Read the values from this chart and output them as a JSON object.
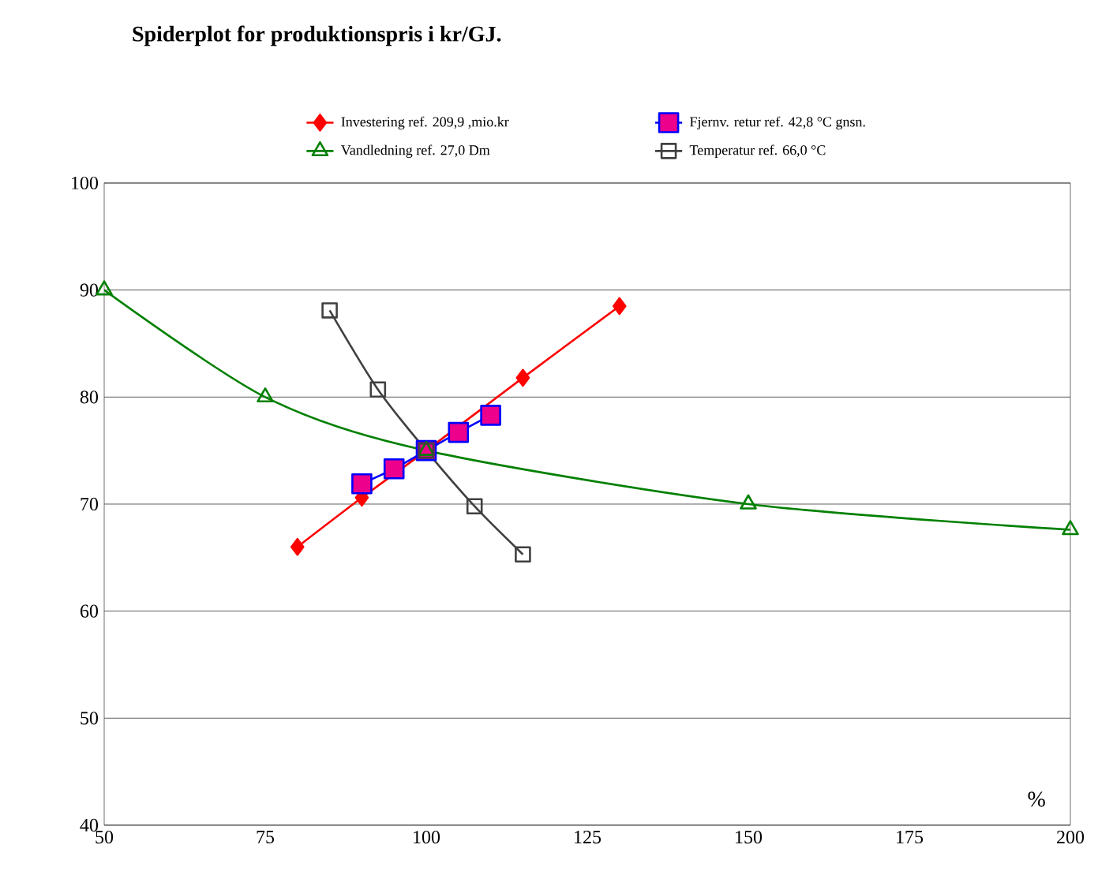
{
  "chart_data": {
    "type": "line",
    "title": "Spiderplot for produktionspris i kr/GJ.",
    "xlabel": "%",
    "xlim": [
      50,
      200
    ],
    "xticks": [
      50,
      75,
      100,
      125,
      150,
      175,
      200
    ],
    "ylim": [
      40,
      100
    ],
    "yticks": [
      40,
      50,
      60,
      70,
      80,
      90,
      100
    ],
    "grid": "y",
    "legend": "top",
    "series": [
      {
        "name": "Investering ref. 209,9 ,mio.kr",
        "color": "#ff0000",
        "marker": "diamond",
        "x": [
          80,
          90,
          100,
          115,
          130
        ],
        "values": [
          66,
          70.6,
          75,
          81.8,
          88.5
        ]
      },
      {
        "name": "Fjernv. retur ref. 42,8 °C gnsn.",
        "color": "#0000ff",
        "marker": "square",
        "x": [
          90,
          95,
          100,
          105,
          110
        ],
        "values": [
          71.9,
          73.3,
          75,
          76.7,
          78.3
        ]
      },
      {
        "name": "Vandledning ref. 27,0 Dm",
        "color": "#008000",
        "marker": "triangle",
        "x": [
          50,
          75,
          100,
          150,
          200
        ],
        "values": [
          90,
          80,
          75,
          70,
          67.6
        ]
      },
      {
        "name": "Temperatur ref. 66,0 °C",
        "color": "#404040",
        "marker": "square",
        "x": [
          85,
          92.5,
          100,
          107.5,
          115
        ],
        "values": [
          88.1,
          80.7,
          75,
          69.8,
          65.3
        ]
      }
    ]
  }
}
